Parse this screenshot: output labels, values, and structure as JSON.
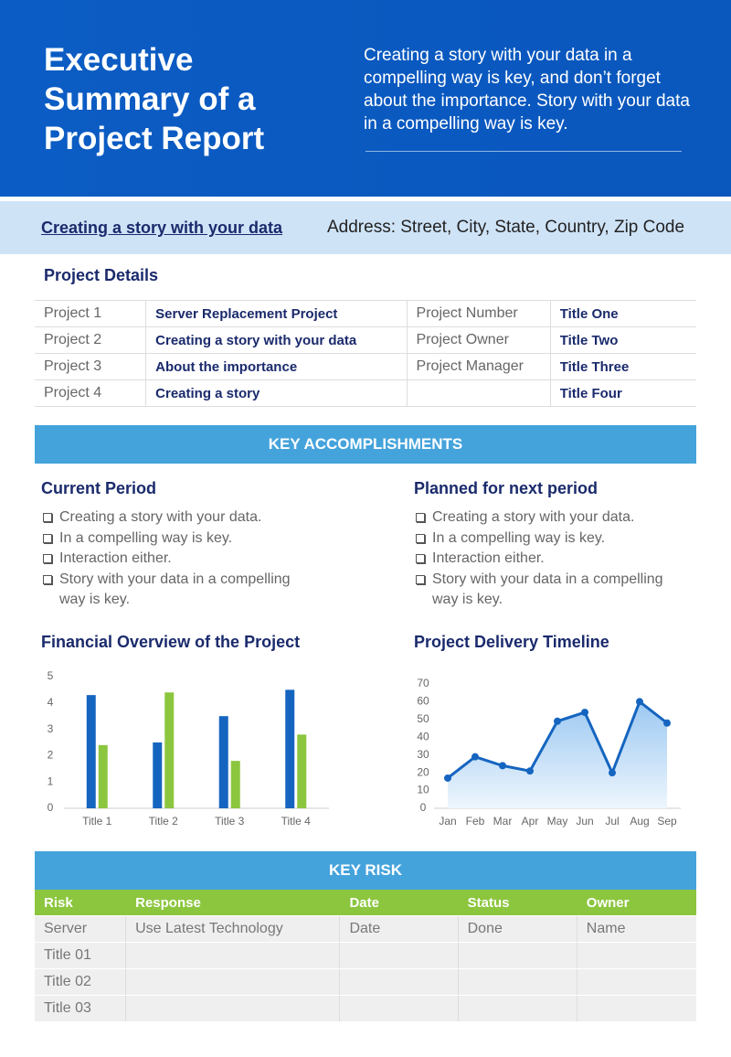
{
  "header": {
    "title": "Executive Summary of a Project Report",
    "description": "Creating a story with your data in a compelling way is key, and don’t forget about the importance. Story with your data in a compelling way is key."
  },
  "banner": {
    "link": "Creating a story with your data",
    "address": "Address: Street, City, State, Country, Zip Code"
  },
  "project_details": {
    "title": "Project Details",
    "rows": [
      [
        "Project 1",
        "Server Replacement Project",
        "Project Number",
        "Title One"
      ],
      [
        "Project 2",
        "Creating a story with your data",
        "Project Owner",
        "Title Two"
      ],
      [
        "Project 3",
        "About the importance",
        "Project Manager",
        "Title Three"
      ],
      [
        "Project 4",
        "Creating a story",
        null,
        "Title Four"
      ]
    ]
  },
  "accomplishments": {
    "title": "KEY ACCOMPLISHMENTS",
    "current": {
      "title": "Current Period",
      "items": [
        "Creating a story with your data.",
        "In a compelling way is key.",
        "Interaction either.",
        "Story with your data in a compelling way is key."
      ]
    },
    "planned": {
      "title": "Planned for next period",
      "items": [
        "Creating a story with your data.",
        "In a compelling way is key.",
        "Interaction either.",
        "Story with your data in a compelling way is key."
      ]
    }
  },
  "chart_data": [
    {
      "type": "bar",
      "title": "Financial Overview of the Project",
      "categories": [
        "Title 1",
        "Title 2",
        "Title 3",
        "Title 4"
      ],
      "series": [
        {
          "color": "#1565c0",
          "values": [
            4.3,
            2.5,
            3.5,
            4.5
          ]
        },
        {
          "color": "#8cc63f",
          "values": [
            2.4,
            4.4,
            1.8,
            2.8
          ]
        }
      ],
      "ylim": [
        0,
        5
      ],
      "yticks": [
        0,
        1,
        2,
        3,
        4,
        5
      ]
    },
    {
      "type": "line",
      "title": "Project Delivery Timeline",
      "categories": [
        "Jan",
        "Feb",
        "Mar",
        "Apr",
        "May",
        "Jun",
        "Jul",
        "Aug",
        "Sep"
      ],
      "color": "#1565c0",
      "values": [
        17,
        29,
        24,
        21,
        49,
        54,
        20,
        60,
        48
      ],
      "ylim": [
        0,
        70
      ],
      "yticks": [
        0,
        10,
        20,
        30,
        40,
        50,
        60,
        70
      ]
    }
  ],
  "key_risk": {
    "title": "KEY RISK",
    "header": [
      "Risk",
      "Response",
      "Date",
      "Status",
      "Owner"
    ],
    "rows": [
      [
        "Server",
        "Use Latest Technology",
        "Date",
        "Done",
        "Name"
      ],
      [
        "Title 01",
        null,
        null,
        null,
        null
      ],
      [
        "Title 02",
        null,
        null,
        null,
        null
      ],
      [
        "Title 03",
        null,
        null,
        null,
        null
      ]
    ]
  }
}
